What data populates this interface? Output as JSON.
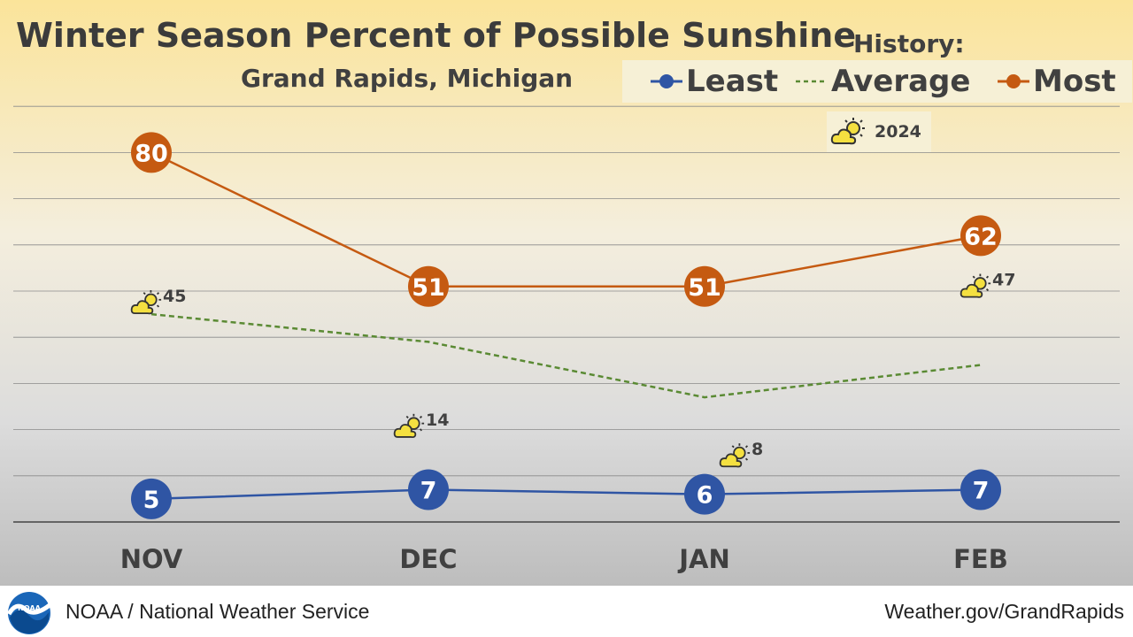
{
  "chart_data": {
    "type": "line",
    "title": "Winter Season Percent of Possible Sunshine",
    "subtitle": "Grand Rapids, Michigan",
    "categories": [
      "NOV",
      "DEC",
      "JAN",
      "FEB"
    ],
    "ylim": [
      0,
      90
    ],
    "grid": true,
    "legend": {
      "heading": "History:",
      "placement": "top-right",
      "items": [
        "Least",
        "Average",
        "Most"
      ]
    },
    "series": [
      {
        "name": "Least",
        "values": [
          5,
          7,
          6,
          7
        ],
        "color": "#2f55a4",
        "style": "solid-circle-labeled"
      },
      {
        "name": "Average",
        "values": [
          45,
          39,
          27,
          34
        ],
        "color": "#5a8a33",
        "style": "dashed"
      },
      {
        "name": "Most",
        "values": [
          80,
          51,
          51,
          62
        ],
        "color": "#c55a11",
        "style": "solid-circle-labeled"
      },
      {
        "name": "2024",
        "values": [
          45,
          14,
          8,
          47
        ],
        "icon": "sun-behind-cloud-icon",
        "style": "icon-labeled"
      }
    ],
    "inset_label": "2024"
  },
  "footer": {
    "left_text": "NOAA / National Weather Service",
    "right_text": "Weather.gov/GrandRapids",
    "logo_text": "NOAA"
  }
}
